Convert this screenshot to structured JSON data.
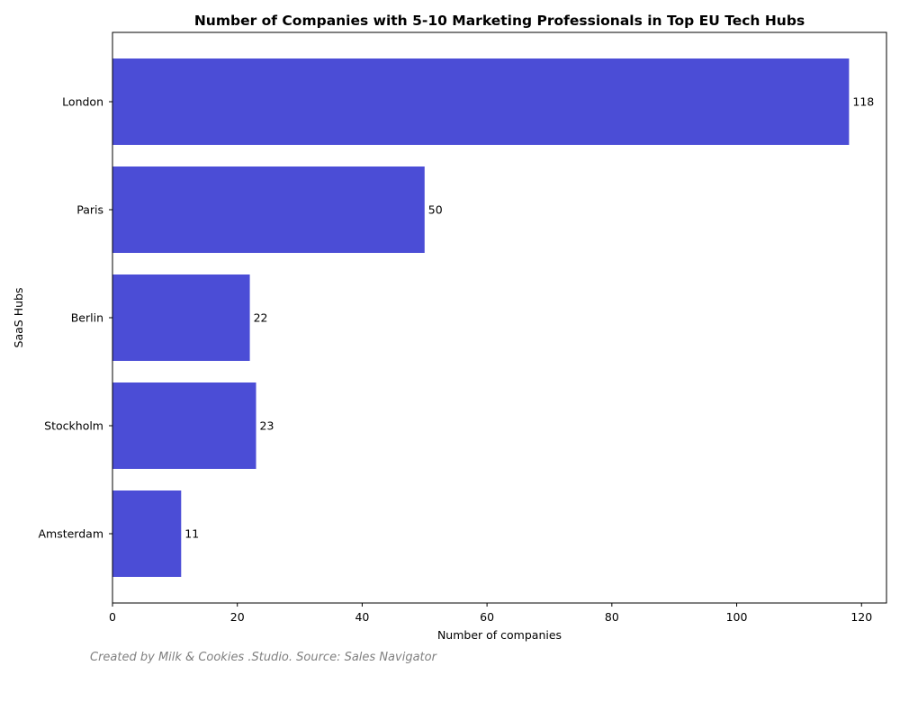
{
  "chart_data": {
    "type": "bar",
    "orientation": "horizontal",
    "title": "Number of Companies with 5-10 Marketing Professionals in Top EU Tech Hubs",
    "xlabel": "Number of companies",
    "ylabel": "SaaS Hubs",
    "categories": [
      "London",
      "Paris",
      "Berlin",
      "Stockholm",
      "Amsterdam"
    ],
    "values": [
      118,
      50,
      22,
      23,
      11
    ],
    "xlim": [
      0,
      124
    ],
    "xticks": [
      0,
      20,
      40,
      60,
      80,
      100,
      120
    ],
    "grid": false,
    "bar_color": "#4b4dd6"
  },
  "footnote": "Created by Milk & Cookies .Studio. Source: Sales Navigator"
}
